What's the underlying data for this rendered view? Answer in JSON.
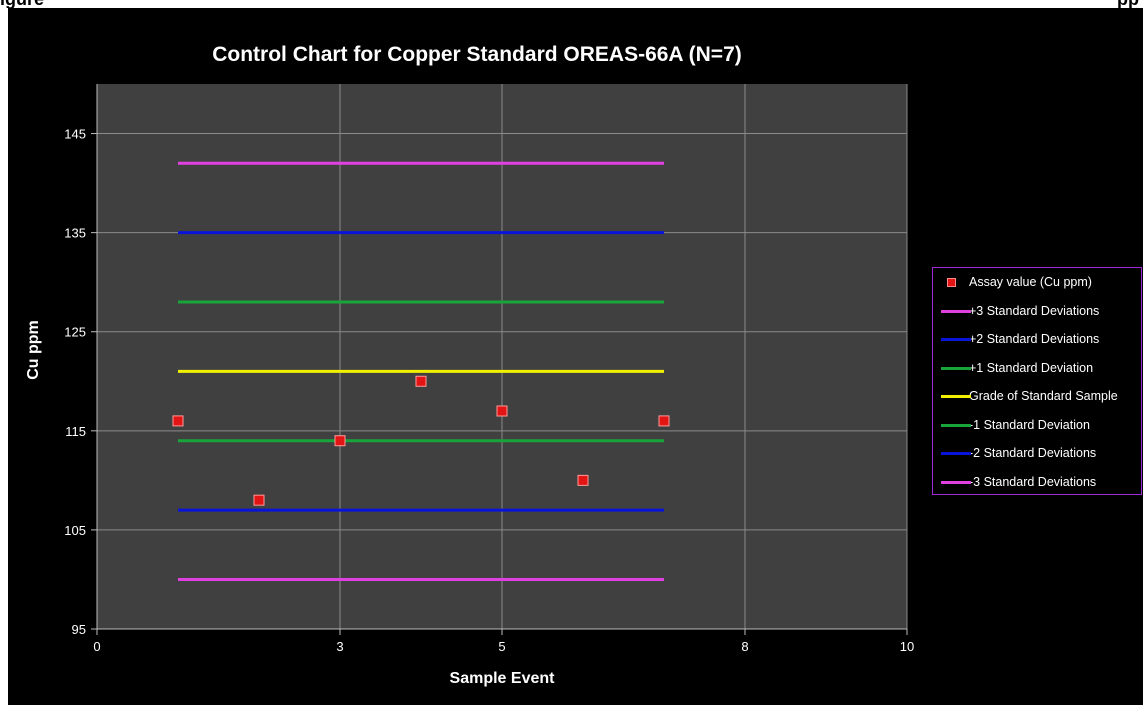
{
  "header": {
    "left_text": "igure",
    "right_text": "pp"
  },
  "chart_data": {
    "type": "scatter",
    "title": "Control Chart for Copper Standard OREAS-66A (N=7)",
    "xlabel": "Sample Event",
    "ylabel": "Cu ppm",
    "xlim": [
      0,
      10
    ],
    "ylim": [
      95,
      150
    ],
    "x_ticks": [
      0,
      3,
      5,
      8,
      10
    ],
    "y_ticks": [
      95,
      105,
      115,
      125,
      135,
      145
    ],
    "grid": true,
    "legend_position": "right",
    "colors": {
      "background": "#000000",
      "plot_area": "#404040",
      "grid": "#8a8a8a",
      "text": "#ffffff",
      "marker": "#e31414"
    },
    "series": [
      {
        "name": "Assay value (Cu ppm)",
        "kind": "scatter",
        "color": "#e31414",
        "x": [
          1,
          2,
          3,
          4,
          5,
          6,
          7
        ],
        "y": [
          116,
          108,
          114,
          120,
          117,
          110,
          116
        ]
      },
      {
        "name": "+3 Standard Deviations",
        "kind": "line",
        "color": "#e040e0",
        "x": [
          1,
          7
        ],
        "y": [
          142,
          142
        ]
      },
      {
        "name": "+2 Standard Deviations",
        "kind": "line",
        "color": "#0a14d8",
        "x": [
          1,
          7
        ],
        "y": [
          135,
          135
        ]
      },
      {
        "name": "+1 Standard Deviation",
        "kind": "line",
        "color": "#18a43a",
        "x": [
          1,
          7
        ],
        "y": [
          128,
          128
        ]
      },
      {
        "name": "Grade of Standard Sample",
        "kind": "line",
        "color": "#f0f000",
        "x": [
          1,
          7
        ],
        "y": [
          121,
          121
        ]
      },
      {
        "name": "-1 Standard Deviation",
        "kind": "line",
        "color": "#18a43a",
        "x": [
          1,
          7
        ],
        "y": [
          114,
          114
        ]
      },
      {
        "name": "-2 Standard Deviations",
        "kind": "line",
        "color": "#0a14d8",
        "x": [
          1,
          7
        ],
        "y": [
          107,
          107
        ]
      },
      {
        "name": "-3 Standard Deviations",
        "kind": "line",
        "color": "#e040e0",
        "x": [
          1,
          7
        ],
        "y": [
          100,
          100
        ]
      }
    ]
  }
}
